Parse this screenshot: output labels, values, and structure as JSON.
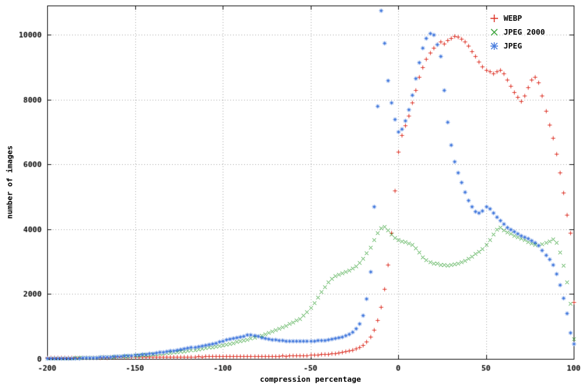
{
  "chart_data": {
    "type": "scatter",
    "title": "",
    "xlabel": "compression percentage",
    "ylabel": "number of images",
    "xlim": [
      -200,
      100
    ],
    "ylim": [
      0,
      10900
    ],
    "x_ticks": [
      -200,
      -150,
      -100,
      -50,
      0,
      50,
      100
    ],
    "y_ticks": [
      0,
      2000,
      4000,
      6000,
      8000,
      10000
    ],
    "grid": "dotted",
    "grid_color": "#9a9a9a",
    "axis_color": "#000000",
    "legend_position": "top-right-inside",
    "x_range": {
      "start": -200,
      "step": 2,
      "count": 151
    },
    "series": [
      {
        "name": "WEBP",
        "marker": "plus",
        "color": "#dd3125",
        "values": [
          40,
          38,
          42,
          40,
          45,
          43,
          46,
          44,
          48,
          46,
          50,
          48,
          52,
          50,
          53,
          51,
          55,
          53,
          56,
          54,
          57,
          55,
          58,
          60,
          58,
          62,
          60,
          63,
          61,
          65,
          63,
          66,
          64,
          68,
          66,
          69,
          67,
          71,
          69,
          72,
          70,
          74,
          72,
          75,
          73,
          77,
          75,
          78,
          76,
          80,
          78,
          82,
          80,
          83,
          81,
          85,
          83,
          87,
          85,
          89,
          87,
          91,
          89,
          93,
          91,
          95,
          93,
          98,
          96,
          101,
          99,
          104,
          108,
          112,
          117,
          122,
          128,
          134,
          141,
          149,
          158,
          168,
          180,
          193,
          208,
          226,
          248,
          275,
          310,
          360,
          430,
          530,
          680,
          900,
          1200,
          1600,
          2150,
          2900,
          3900,
          5200,
          6400,
          6900,
          7200,
          7500,
          7900,
          8300,
          8700,
          9000,
          9250,
          9450,
          9600,
          9700,
          9780,
          9720,
          9830,
          9900,
          9960,
          9940,
          9880,
          9780,
          9650,
          9500,
          9330,
          9170,
          9020,
          8920,
          8860,
          8810,
          8860,
          8910,
          8810,
          8610,
          8420,
          8230,
          8070,
          7960,
          8120,
          8380,
          8620,
          8700,
          8520,
          8130,
          7650,
          7230,
          6820,
          6330,
          5740,
          5120,
          4450,
          3900,
          1750
        ]
      },
      {
        "name": "JPEG 2000",
        "marker": "cross",
        "color": "#3aa33a",
        "values": [
          18,
          20,
          22,
          24,
          26,
          28,
          30,
          32,
          34,
          37,
          40,
          43,
          46,
          49,
          52,
          56,
          60,
          64,
          69,
          74,
          79,
          84,
          90,
          96,
          102,
          108,
          115,
          122,
          130,
          138,
          146,
          155,
          164,
          174,
          184,
          195,
          206,
          218,
          231,
          244,
          258,
          272,
          287,
          303,
          319,
          336,
          354,
          373,
          392,
          412,
          435,
          455,
          478,
          502,
          527,
          553,
          580,
          608,
          638,
          669,
          702,
          736,
          772,
          810,
          850,
          892,
          936,
          982,
          1030,
          1080,
          1133,
          1188,
          1246,
          1340,
          1450,
          1580,
          1730,
          1900,
          2070,
          2230,
          2370,
          2480,
          2560,
          2610,
          2650,
          2690,
          2730,
          2790,
          2870,
          2970,
          3100,
          3260,
          3450,
          3680,
          3900,
          4030,
          4090,
          3980,
          3840,
          3730,
          3670,
          3630,
          3610,
          3570,
          3520,
          3430,
          3290,
          3150,
          3060,
          3000,
          2960,
          2940,
          2910,
          2900,
          2895,
          2905,
          2930,
          2950,
          2990,
          3040,
          3090,
          3170,
          3240,
          3310,
          3400,
          3530,
          3680,
          3840,
          3990,
          4060,
          3970,
          3910,
          3860,
          3810,
          3760,
          3710,
          3670,
          3620,
          3570,
          3530,
          3510,
          3540,
          3590,
          3640,
          3690,
          3590,
          3290,
          2880,
          2380,
          1700,
          620
        ]
      },
      {
        "name": "JPEG",
        "marker": "star",
        "color": "#4a7ede",
        "values": [
          12,
          14,
          15,
          17,
          19,
          21,
          23,
          25,
          28,
          31,
          34,
          37,
          41,
          45,
          49,
          54,
          59,
          64,
          70,
          76,
          83,
          90,
          98,
          106,
          115,
          124,
          134,
          144,
          155,
          167,
          179,
          192,
          205,
          219,
          234,
          249,
          265,
          281,
          298,
          316,
          334,
          353,
          372,
          392,
          413,
          434,
          456,
          478,
          501,
          525,
          560,
          590,
          615,
          640,
          665,
          690,
          715,
          740,
          755,
          735,
          700,
          665,
          635,
          615,
          600,
          590,
          580,
          572,
          566,
          561,
          557,
          554,
          552,
          551,
          552,
          555,
          560,
          567,
          576,
          587,
          600,
          616,
          635,
          658,
          686,
          720,
          765,
          830,
          930,
          1080,
          1350,
          1850,
          2700,
          4700,
          7800,
          10750,
          9750,
          8600,
          7900,
          7400,
          7000,
          7100,
          7350,
          7700,
          8150,
          8650,
          9150,
          9600,
          9900,
          10050,
          10000,
          9700,
          9350,
          8300,
          7300,
          6600,
          6100,
          5750,
          5450,
          5150,
          4900,
          4700,
          4560,
          4500,
          4580,
          4700,
          4640,
          4510,
          4380,
          4270,
          4170,
          4070,
          3990,
          3930,
          3870,
          3810,
          3760,
          3710,
          3660,
          3600,
          3500,
          3360,
          3210,
          3080,
          2900,
          2620,
          2280,
          1880,
          1400,
          820,
          460
        ]
      }
    ]
  }
}
